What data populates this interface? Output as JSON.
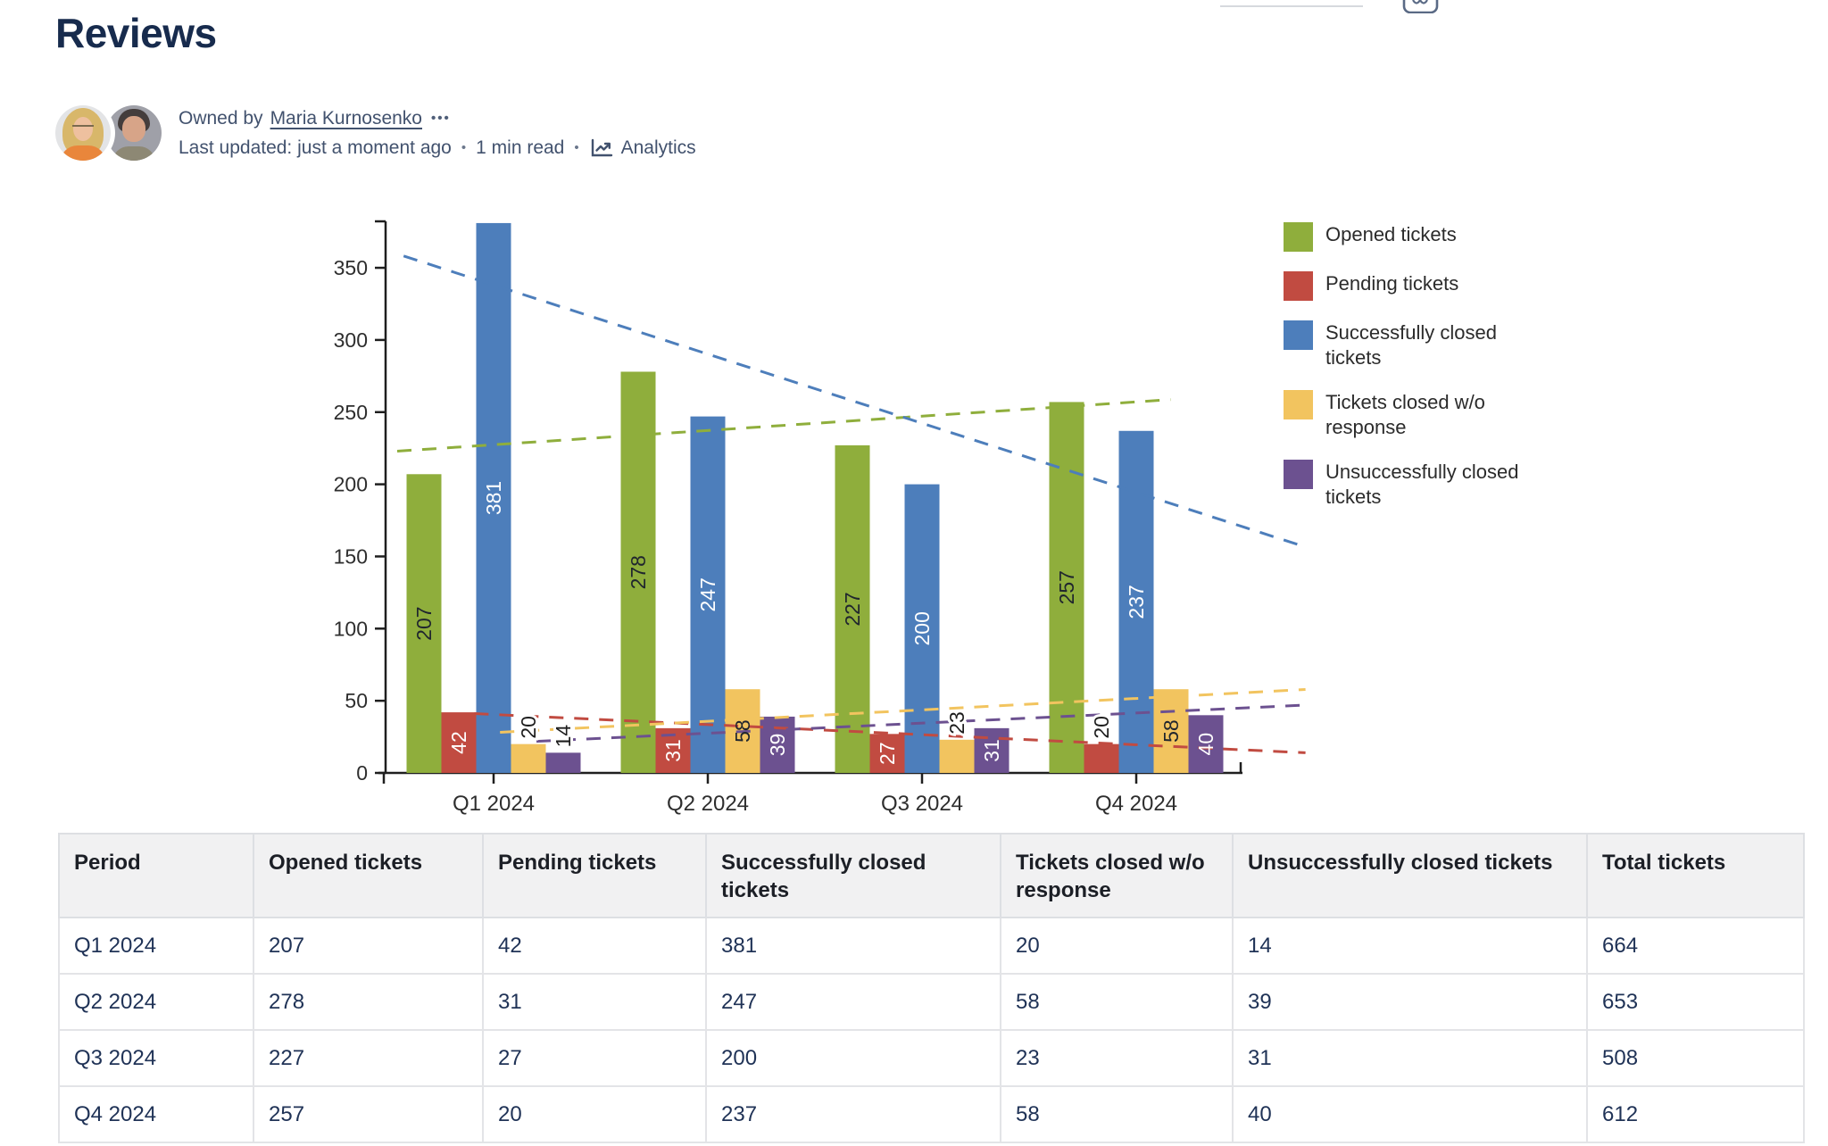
{
  "page": {
    "title": "Reviews"
  },
  "byline": {
    "owned_by_prefix": "Owned by",
    "owner": "Maria Kurnosenko",
    "more_label": "•••",
    "last_updated": "Last updated: just a moment ago",
    "read_time": "1 min read",
    "separator": "•",
    "analytics_label": "Analytics"
  },
  "chart_data": {
    "type": "bar",
    "title": "",
    "xlabel": "",
    "ylabel": "",
    "categories": [
      "Q1 2024",
      "Q2 2024",
      "Q3 2024",
      "Q4 2024"
    ],
    "series": [
      {
        "name": "Opened tickets",
        "color": "#8FAE3C",
        "label_color": "#20262E",
        "values": [
          207,
          278,
          227,
          257
        ]
      },
      {
        "name": "Pending tickets",
        "color": "#C14B41",
        "label_color": "#FFFFFF",
        "values": [
          42,
          31,
          27,
          20
        ]
      },
      {
        "name": "Successfully closed tickets",
        "color": "#4D7EBB",
        "label_color": "#FFFFFF",
        "values": [
          381,
          247,
          200,
          237
        ]
      },
      {
        "name": "Tickets closed w/o response",
        "color": "#F2C45F",
        "label_color": "#20262E",
        "values": [
          20,
          58,
          23,
          58
        ]
      },
      {
        "name": "Unsuccessfully closed tickets",
        "color": "#6C5190",
        "label_color": "#FFFFFF",
        "values": [
          14,
          39,
          31,
          40
        ]
      }
    ],
    "ylim": [
      0,
      381
    ],
    "yticks": [
      0,
      50,
      100,
      150,
      200,
      250,
      300,
      350
    ],
    "grid": false,
    "legend_position": "right",
    "bar_value_labels": true,
    "value_label_rotation": -90,
    "trendlines": {
      "style": "dashed",
      "fit": "linear",
      "per_series": true
    }
  },
  "table": {
    "headers": [
      "Period",
      "Opened tickets",
      "Pending tickets",
      "Successfully closed tickets",
      "Tickets closed w/o response",
      "Unsuccessfully closed tickets",
      "Total tickets"
    ],
    "rows": [
      [
        "Q1 2024",
        "207",
        "42",
        "381",
        "20",
        "14",
        "664"
      ],
      [
        "Q2 2024",
        "278",
        "31",
        "247",
        "58",
        "39",
        "653"
      ],
      [
        "Q3 2024",
        "227",
        "27",
        "200",
        "23",
        "31",
        "508"
      ],
      [
        "Q4 2024",
        "257",
        "20",
        "237",
        "58",
        "40",
        "612"
      ]
    ]
  }
}
